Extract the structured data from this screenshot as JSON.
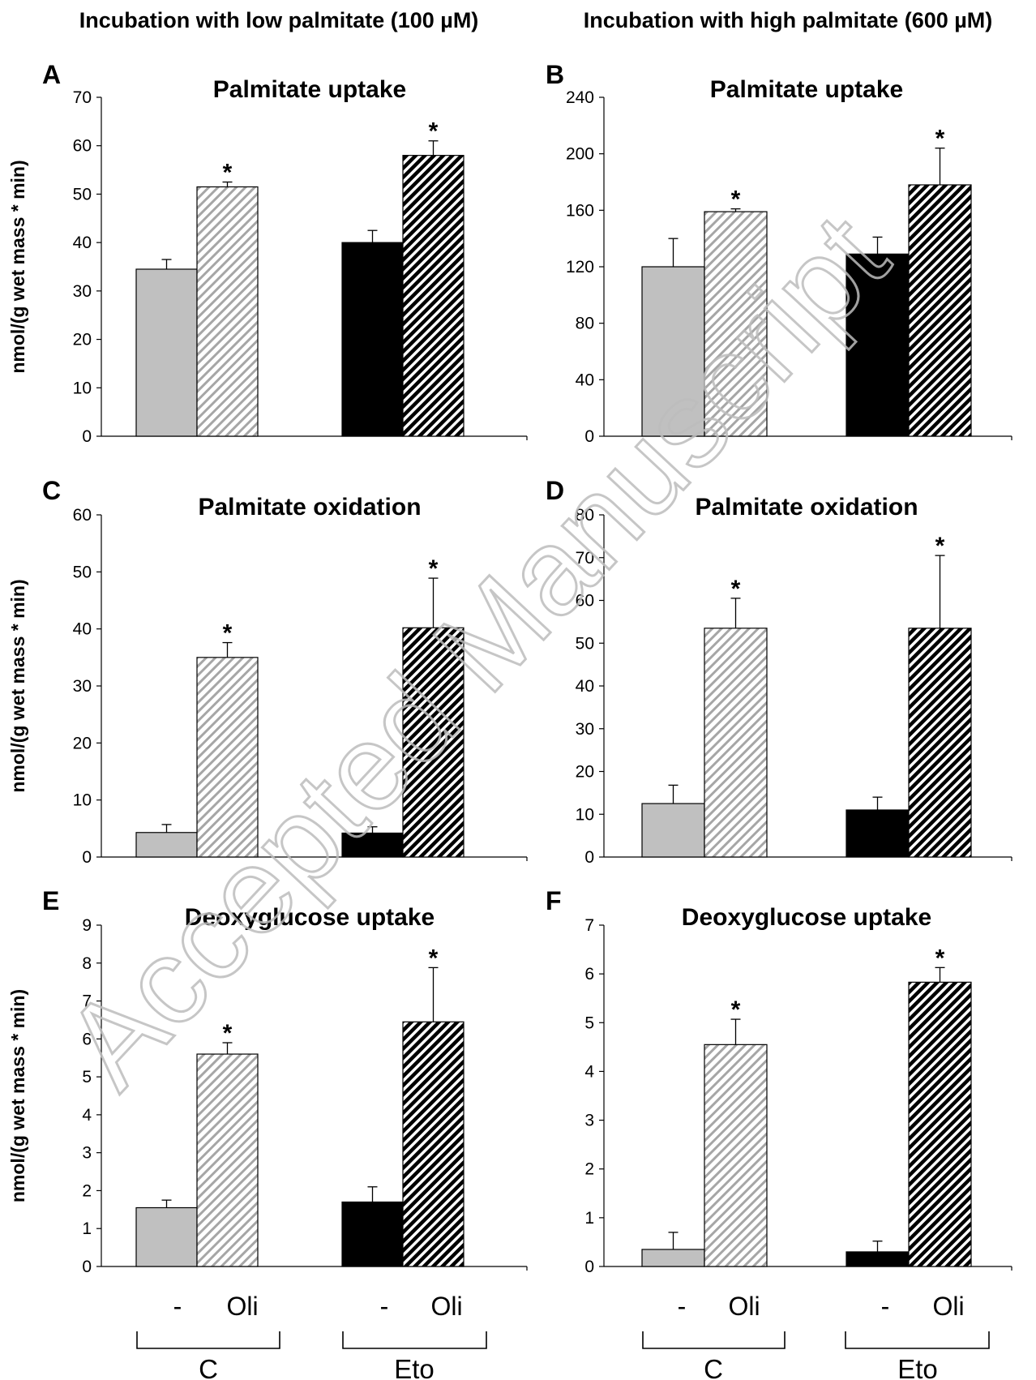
{
  "headers": {
    "left": "Incubation with low palmitate (100 µM)",
    "right": "Incubation with high palmitate (600 µM)"
  },
  "ylabel": "nmol/(g wet mass * min)",
  "bar_labels": [
    "-",
    "Oli",
    "-",
    "Oli"
  ],
  "group_labels": [
    "C",
    "Eto"
  ],
  "significance_marker": "*",
  "watermark": "Accepted Manuscript",
  "colors": {
    "control": "#c0c0c0",
    "eto": "#000000",
    "oli_c_stripe": "#a6a6a6",
    "oli_eto_stripe": "#000000",
    "watermark": "#bdbdbd"
  },
  "chart_data": [
    {
      "panel": "A",
      "type": "bar",
      "title": "Palmitate uptake",
      "ylim": [
        0,
        70
      ],
      "yticks": [
        0,
        10,
        20,
        30,
        40,
        50,
        60,
        70
      ],
      "groups": [
        "C",
        "Eto"
      ],
      "series": [
        {
          "name": "-",
          "values": [
            34.5,
            40.0
          ],
          "errors": [
            2.0,
            2.5
          ]
        },
        {
          "name": "Oli",
          "values": [
            51.5,
            58.0
          ],
          "errors": [
            1.0,
            3.0
          ]
        }
      ],
      "significant": [
        false,
        true,
        false,
        true
      ]
    },
    {
      "panel": "B",
      "type": "bar",
      "title": "Palmitate uptake",
      "ylim": [
        0,
        240
      ],
      "yticks": [
        0,
        40,
        80,
        120,
        160,
        200,
        240
      ],
      "groups": [
        "C",
        "Eto"
      ],
      "series": [
        {
          "name": "-",
          "values": [
            120,
            129
          ],
          "errors": [
            20,
            12
          ]
        },
        {
          "name": "Oli",
          "values": [
            159,
            178
          ],
          "errors": [
            2,
            26
          ]
        }
      ],
      "significant": [
        false,
        true,
        false,
        true
      ]
    },
    {
      "panel": "C",
      "type": "bar",
      "title": "Palmitate oxidation",
      "ylim": [
        0,
        60
      ],
      "yticks": [
        0,
        10,
        20,
        30,
        40,
        50,
        60
      ],
      "groups": [
        "C",
        "Eto"
      ],
      "series": [
        {
          "name": "-",
          "values": [
            4.3,
            4.2
          ],
          "errors": [
            1.4,
            1.1
          ]
        },
        {
          "name": "Oli",
          "values": [
            35.0,
            40.2
          ],
          "errors": [
            2.6,
            8.7
          ]
        }
      ],
      "significant": [
        false,
        true,
        false,
        true
      ]
    },
    {
      "panel": "D",
      "type": "bar",
      "title": "Palmitate oxidation",
      "ylim": [
        0,
        80
      ],
      "yticks": [
        0,
        10,
        20,
        30,
        40,
        50,
        60,
        70,
        80
      ],
      "groups": [
        "C",
        "Eto"
      ],
      "series": [
        {
          "name": "-",
          "values": [
            12.5,
            11.0
          ],
          "errors": [
            4.3,
            3.0
          ]
        },
        {
          "name": "Oli",
          "values": [
            53.5,
            53.5
          ],
          "errors": [
            7.0,
            17.0
          ]
        }
      ],
      "significant": [
        false,
        true,
        false,
        true
      ]
    },
    {
      "panel": "E",
      "type": "bar",
      "title": "Deoxyglucose uptake",
      "ylim": [
        0,
        9
      ],
      "yticks": [
        0,
        1,
        2,
        3,
        4,
        5,
        6,
        7,
        8,
        9
      ],
      "groups": [
        "C",
        "Eto"
      ],
      "series": [
        {
          "name": "-",
          "values": [
            1.55,
            1.7
          ],
          "errors": [
            0.2,
            0.4
          ]
        },
        {
          "name": "Oli",
          "values": [
            5.6,
            6.45
          ],
          "errors": [
            0.3,
            1.43
          ]
        }
      ],
      "significant": [
        false,
        true,
        false,
        true
      ]
    },
    {
      "panel": "F",
      "type": "bar",
      "title": "Deoxyglucose uptake",
      "ylim": [
        0,
        7
      ],
      "yticks": [
        0,
        1,
        2,
        3,
        4,
        5,
        6,
        7
      ],
      "groups": [
        "C",
        "Eto"
      ],
      "series": [
        {
          "name": "-",
          "values": [
            0.35,
            0.3
          ],
          "errors": [
            0.35,
            0.22
          ]
        },
        {
          "name": "Oli",
          "values": [
            4.55,
            5.83
          ],
          "errors": [
            0.52,
            0.3
          ]
        }
      ],
      "significant": [
        false,
        true,
        false,
        true
      ]
    }
  ]
}
